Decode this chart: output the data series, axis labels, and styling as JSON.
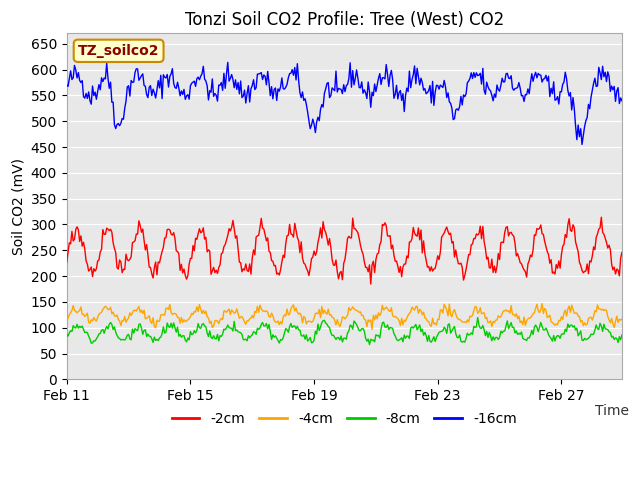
{
  "title": "Tonzi Soil CO2 Profile: Tree (West) CO2",
  "ylabel": "Soil CO2 (mV)",
  "xlabel": "Time",
  "legend_label": "TZ_soilco2",
  "series_labels": [
    "-2cm",
    "-4cm",
    "-8cm",
    "-16cm"
  ],
  "series_colors": [
    "#ff0000",
    "#ffa500",
    "#00cc00",
    "#0000ff"
  ],
  "ylim": [
    0,
    670
  ],
  "yticks": [
    0,
    50,
    100,
    150,
    200,
    250,
    300,
    350,
    400,
    450,
    500,
    550,
    600,
    650
  ],
  "xtick_labels": [
    "Feb 11",
    "Feb 15",
    "Feb 19",
    "Feb 23",
    "Feb 27"
  ],
  "bg_color": "#ffffff",
  "plot_bg_color": "#e8e8e8",
  "title_fontsize": 12,
  "axis_fontsize": 10,
  "tick_fontsize": 10,
  "legend_fontsize": 10,
  "line_width": 1.0,
  "n_points": 432
}
